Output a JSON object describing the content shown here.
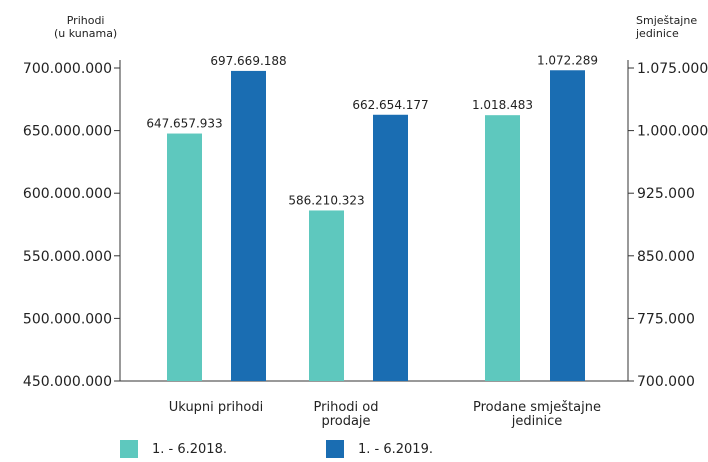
{
  "chart_data": {
    "type": "bar",
    "left_axis": {
      "title_lines": [
        "Prihodi",
        "(u kunama)"
      ],
      "min": 450000000,
      "max": 700000000,
      "ticks": [
        450000000,
        500000000,
        550000000,
        600000000,
        650000000,
        700000000
      ],
      "tick_labels": [
        "450.000.000",
        "500.000.000",
        "550.000.000",
        "600.000.000",
        "650.000.000",
        "700.000.000"
      ]
    },
    "right_axis": {
      "title_lines": [
        "Smještajne",
        "jedinice"
      ],
      "min": 700000,
      "max": 1075000,
      "ticks": [
        700000,
        775000,
        850000,
        925000,
        1000000,
        1075000
      ],
      "tick_labels": [
        "700.000",
        "775.000",
        "850.000",
        "925.000",
        "1.000.000",
        "1.075.000"
      ]
    },
    "categories": [
      {
        "label_lines": [
          "Ukupni prihodi"
        ],
        "axis": "left"
      },
      {
        "label_lines": [
          "Prihodi od",
          "prodaje"
        ],
        "axis": "left"
      },
      {
        "label_lines": [
          "Prodane smještajne",
          "jedinice"
        ],
        "axis": "right"
      }
    ],
    "series": [
      {
        "name": "1. - 6.2018.",
        "color": "#5ec8be",
        "values": [
          647657933,
          586210323,
          1018483
        ],
        "labels": [
          "647.657.933",
          "586.210.323",
          "1.018.483"
        ]
      },
      {
        "name": "1. - 6.2019.",
        "color": "#1a6db2",
        "values": [
          697669188,
          662654177,
          1072289
        ],
        "labels": [
          "697.669.188",
          "662.654.177",
          "1.072.289"
        ]
      }
    ],
    "legend_position": "bottom-left",
    "grid": false
  }
}
